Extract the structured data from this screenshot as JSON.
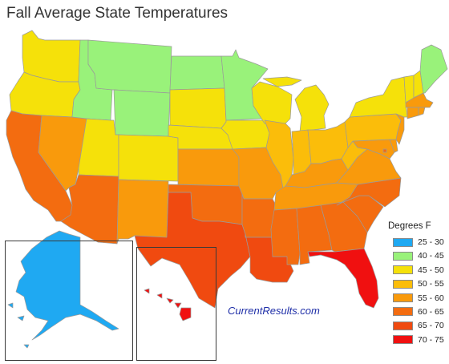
{
  "title": "Fall Average State Temperatures",
  "credit": "CurrentResults.com",
  "legend": {
    "title": "Degrees F",
    "items": [
      {
        "label": "25 - 30",
        "color": "#1fa9f2"
      },
      {
        "label": "40 - 45",
        "color": "#99f27a"
      },
      {
        "label": "45 - 50",
        "color": "#f5e10a"
      },
      {
        "label": "50 - 55",
        "color": "#fbbd0a"
      },
      {
        "label": "55 - 60",
        "color": "#f99a0c"
      },
      {
        "label": "60 - 65",
        "color": "#f36c10"
      },
      {
        "label": "65 - 70",
        "color": "#f04a10"
      },
      {
        "label": "70 - 75",
        "color": "#f01010"
      }
    ]
  },
  "map": {
    "states": [
      {
        "id": "WA",
        "bin": 2
      },
      {
        "id": "OR",
        "bin": 2
      },
      {
        "id": "CA",
        "bin": 5
      },
      {
        "id": "NV",
        "bin": 4
      },
      {
        "id": "ID",
        "bin": 1
      },
      {
        "id": "MT",
        "bin": 1
      },
      {
        "id": "WY",
        "bin": 1
      },
      {
        "id": "UT",
        "bin": 2
      },
      {
        "id": "AZ",
        "bin": 5
      },
      {
        "id": "CO",
        "bin": 2
      },
      {
        "id": "NM",
        "bin": 4
      },
      {
        "id": "ND",
        "bin": 1
      },
      {
        "id": "SD",
        "bin": 2
      },
      {
        "id": "NE",
        "bin": 2
      },
      {
        "id": "KS",
        "bin": 4
      },
      {
        "id": "OK",
        "bin": 5
      },
      {
        "id": "TX",
        "bin": 6
      },
      {
        "id": "MN",
        "bin": 1
      },
      {
        "id": "IA",
        "bin": 2
      },
      {
        "id": "MO",
        "bin": 4
      },
      {
        "id": "AR",
        "bin": 5
      },
      {
        "id": "LA",
        "bin": 6
      },
      {
        "id": "WI",
        "bin": 2
      },
      {
        "id": "IL",
        "bin": 3
      },
      {
        "id": "MI",
        "bin": 2
      },
      {
        "id": "IN",
        "bin": 3
      },
      {
        "id": "OH",
        "bin": 3
      },
      {
        "id": "KY",
        "bin": 4
      },
      {
        "id": "TN",
        "bin": 4
      },
      {
        "id": "MS",
        "bin": 5
      },
      {
        "id": "AL",
        "bin": 5
      },
      {
        "id": "GA",
        "bin": 5
      },
      {
        "id": "FL",
        "bin": 7
      },
      {
        "id": "SC",
        "bin": 5
      },
      {
        "id": "NC",
        "bin": 5
      },
      {
        "id": "VA",
        "bin": 4
      },
      {
        "id": "WV",
        "bin": 3
      },
      {
        "id": "PA",
        "bin": 3
      },
      {
        "id": "NY",
        "bin": 2
      },
      {
        "id": "VT",
        "bin": 2
      },
      {
        "id": "NH",
        "bin": 2
      },
      {
        "id": "ME",
        "bin": 1
      },
      {
        "id": "MA",
        "bin": 4
      },
      {
        "id": "RI",
        "bin": 4
      },
      {
        "id": "CT",
        "bin": 4
      },
      {
        "id": "NJ",
        "bin": 4
      },
      {
        "id": "DE",
        "bin": 4
      },
      {
        "id": "MD",
        "bin": 4
      },
      {
        "id": "DC",
        "bin": 5
      },
      {
        "id": "AK",
        "bin": 0
      },
      {
        "id": "HI",
        "bin": 7
      }
    ]
  }
}
